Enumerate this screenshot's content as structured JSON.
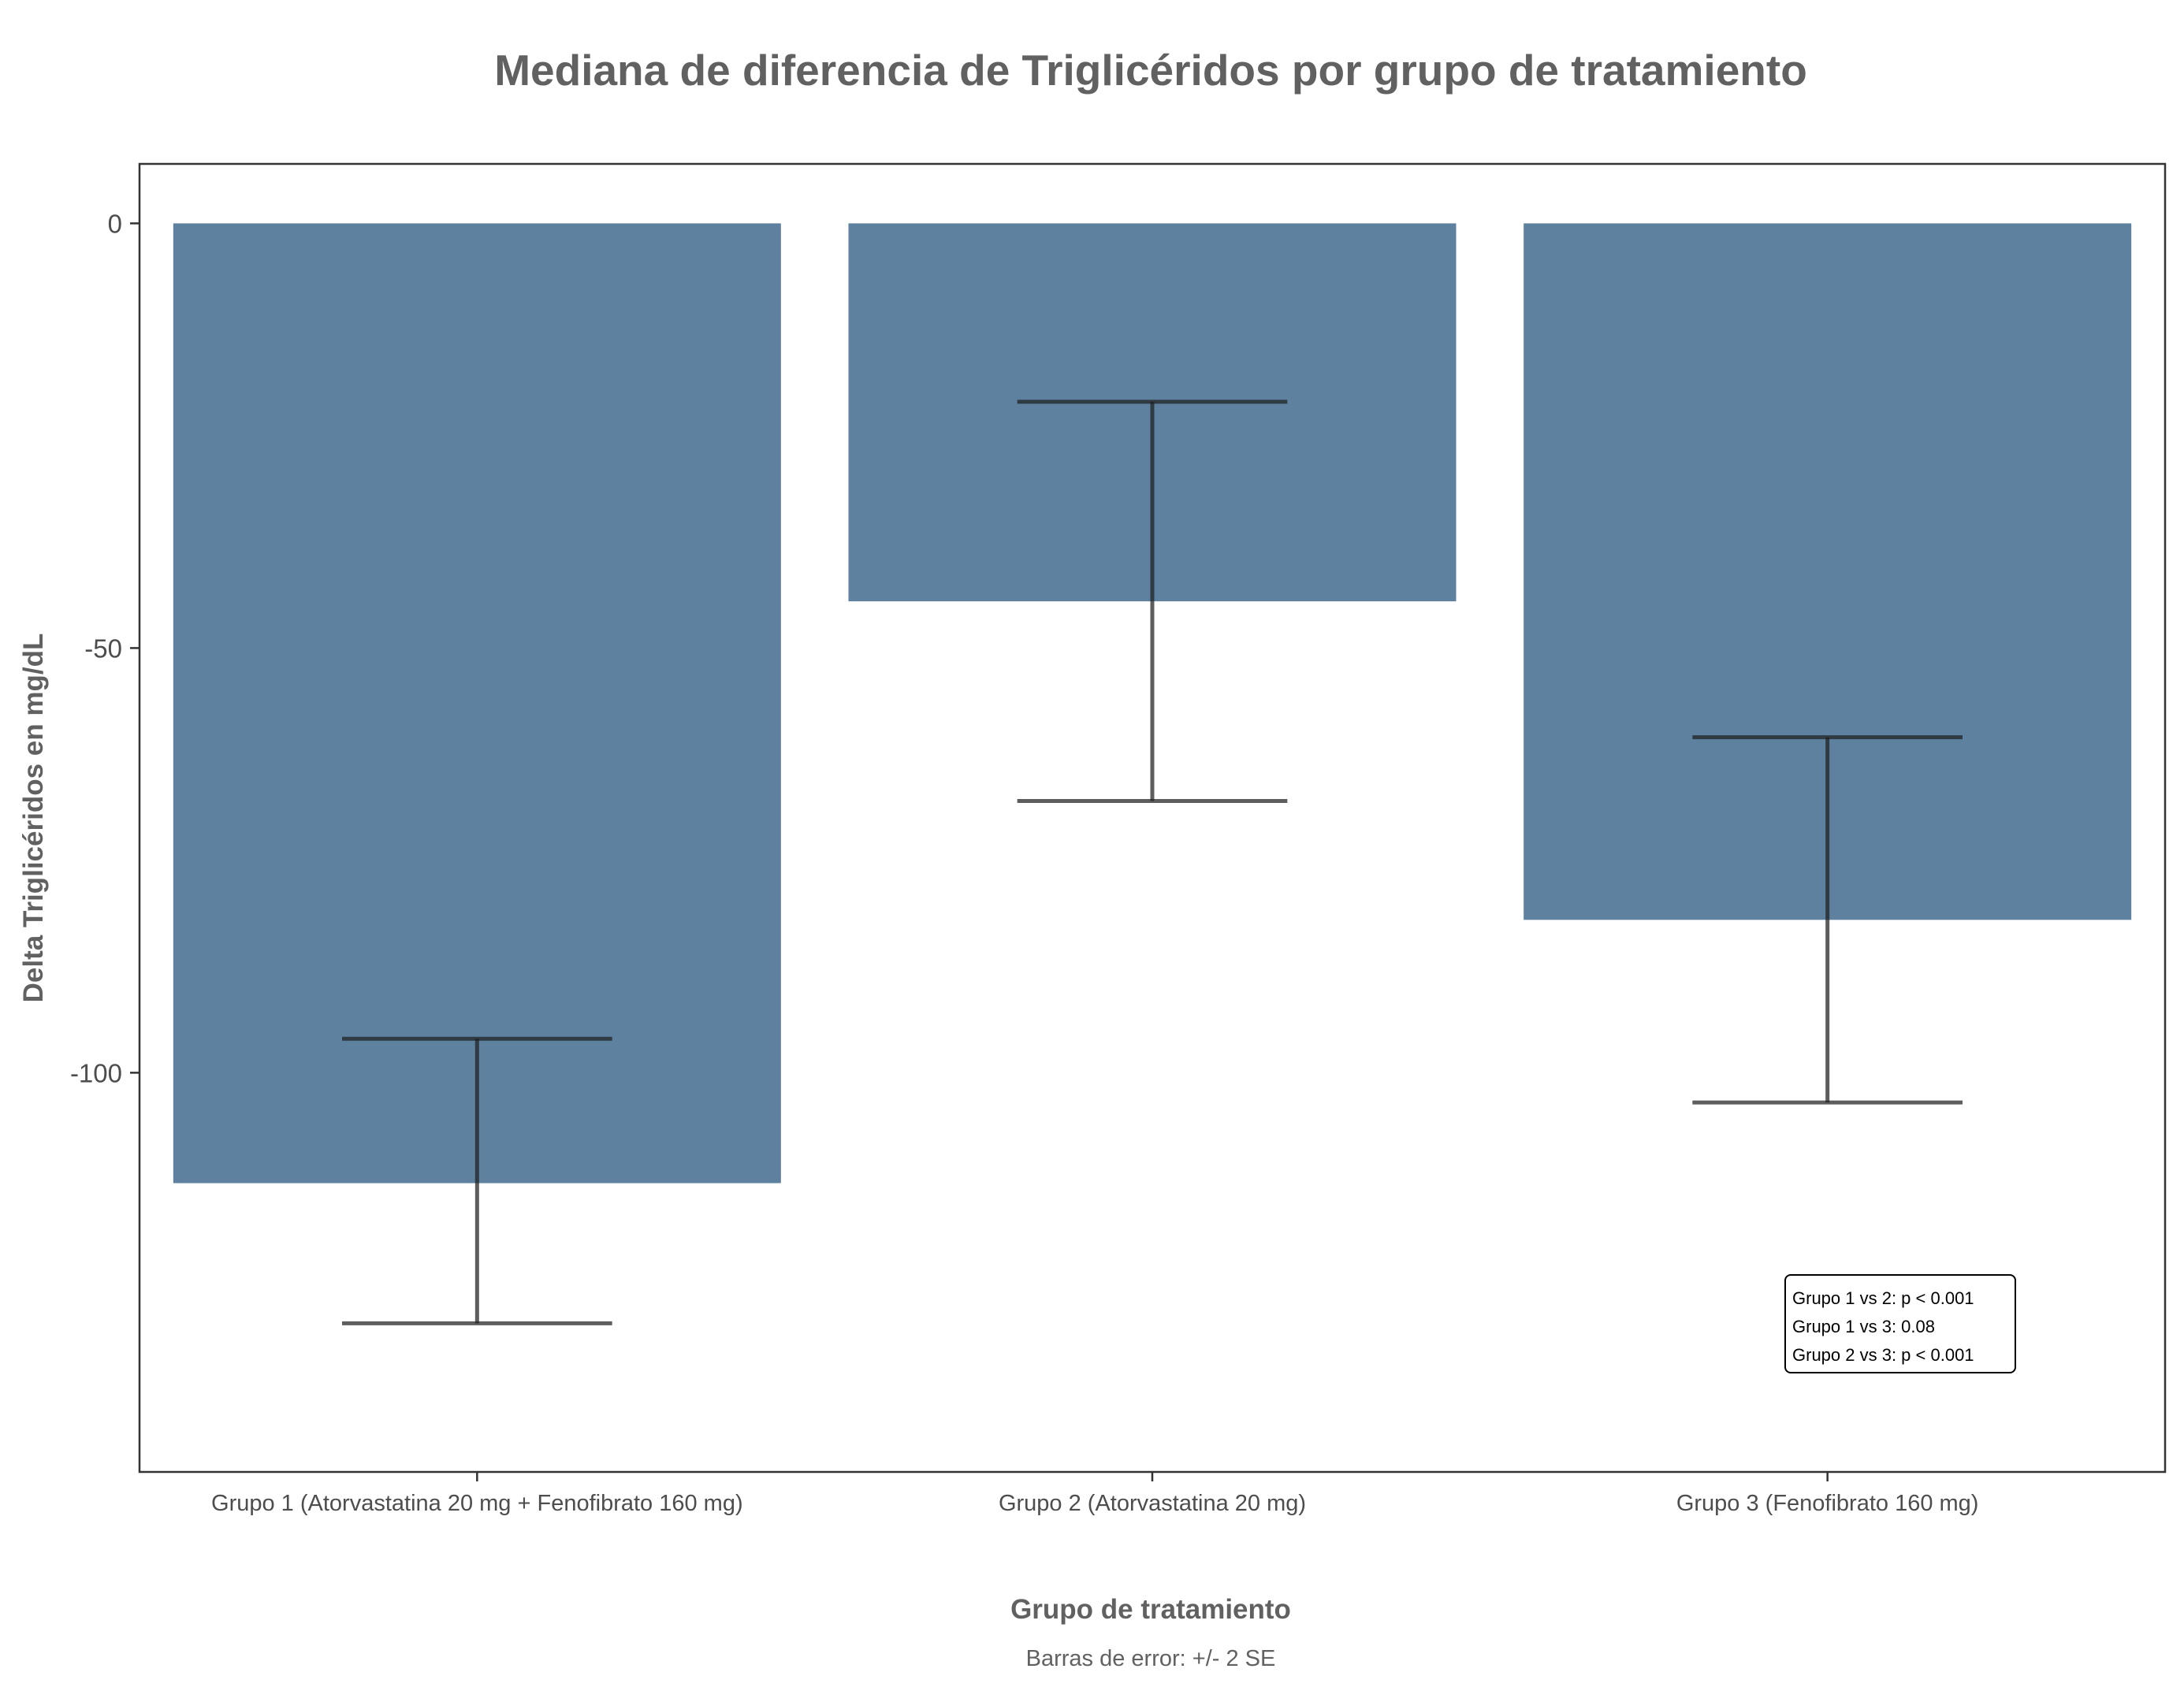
{
  "chart_data": {
    "type": "bar",
    "title": "Mediana de diferencia de Triglicéridos por grupo de tratamiento",
    "xlabel": "Grupo de tratamiento",
    "ylabel": "Delta Triglicéridos en mg/dL",
    "caption": "Barras de error: +/- 2 SE",
    "categories": [
      "Grupo 1 (Atorvastatina 20 mg + Fenofibrato 160 mg)",
      "Grupo 2 (Atorvastatina 20 mg)",
      "Grupo 3 (Fenofibrato 160 mg)"
    ],
    "values": [
      -113,
      -44.5,
      -82
    ],
    "error_bars": [
      {
        "upper": -96,
        "lower": -129.5
      },
      {
        "upper": -21,
        "lower": -68
      },
      {
        "upper": -60.5,
        "lower": -103.5
      }
    ],
    "ylim": [
      -147,
      7
    ],
    "yticks": [
      0,
      -50,
      -100
    ],
    "ytick_labels": [
      "0",
      "-50",
      "-100"
    ],
    "grid": false,
    "annotation": {
      "lines": [
        "Grupo 1 vs 2: p < 0.001",
        "Grupo 1 vs 3: 0.08",
        "Grupo 2 vs 3: p < 0.001"
      ],
      "placement": "bottom-right"
    },
    "colors": {
      "bar": "#5d819f",
      "error_bar": "#1f1f1f",
      "text": "#616161",
      "panel_border": "#333333"
    }
  }
}
